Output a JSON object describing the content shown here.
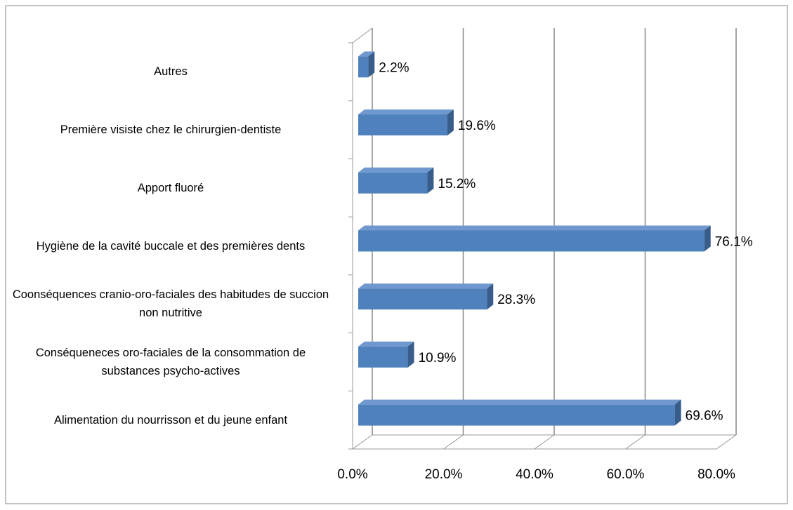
{
  "chart_data": {
    "type": "bar",
    "orientation": "horizontal",
    "three_d": true,
    "categories": [
      "Autres",
      "Première visiste chez le chirurgien-dentiste",
      "Apport fluoré",
      "Hygiène de la cavité buccale et des premières dents",
      "Coonséquences cranio-oro-faciales des habitudes de succion non nutritive",
      "Conséqueneces oro-faciales de la consommation de substances psycho-actives",
      "Alimentation du nourrisson et du jeune enfant"
    ],
    "values": [
      2.2,
      19.6,
      15.2,
      76.1,
      28.3,
      10.9,
      69.6
    ],
    "value_labels": [
      "2.2%",
      "19.6%",
      "15.2%",
      "76.1%",
      "28.3%",
      "10.9%",
      "69.6%"
    ],
    "color": "#4f81bd",
    "xlim": [
      0,
      80
    ],
    "xticks": [
      {
        "value": 0,
        "label": "0.0%"
      },
      {
        "value": 20,
        "label": "20.0%"
      },
      {
        "value": 40,
        "label": "40.0%"
      },
      {
        "value": 60,
        "label": "60.0%"
      },
      {
        "value": 80,
        "label": "80.0%"
      }
    ],
    "grid": true
  }
}
